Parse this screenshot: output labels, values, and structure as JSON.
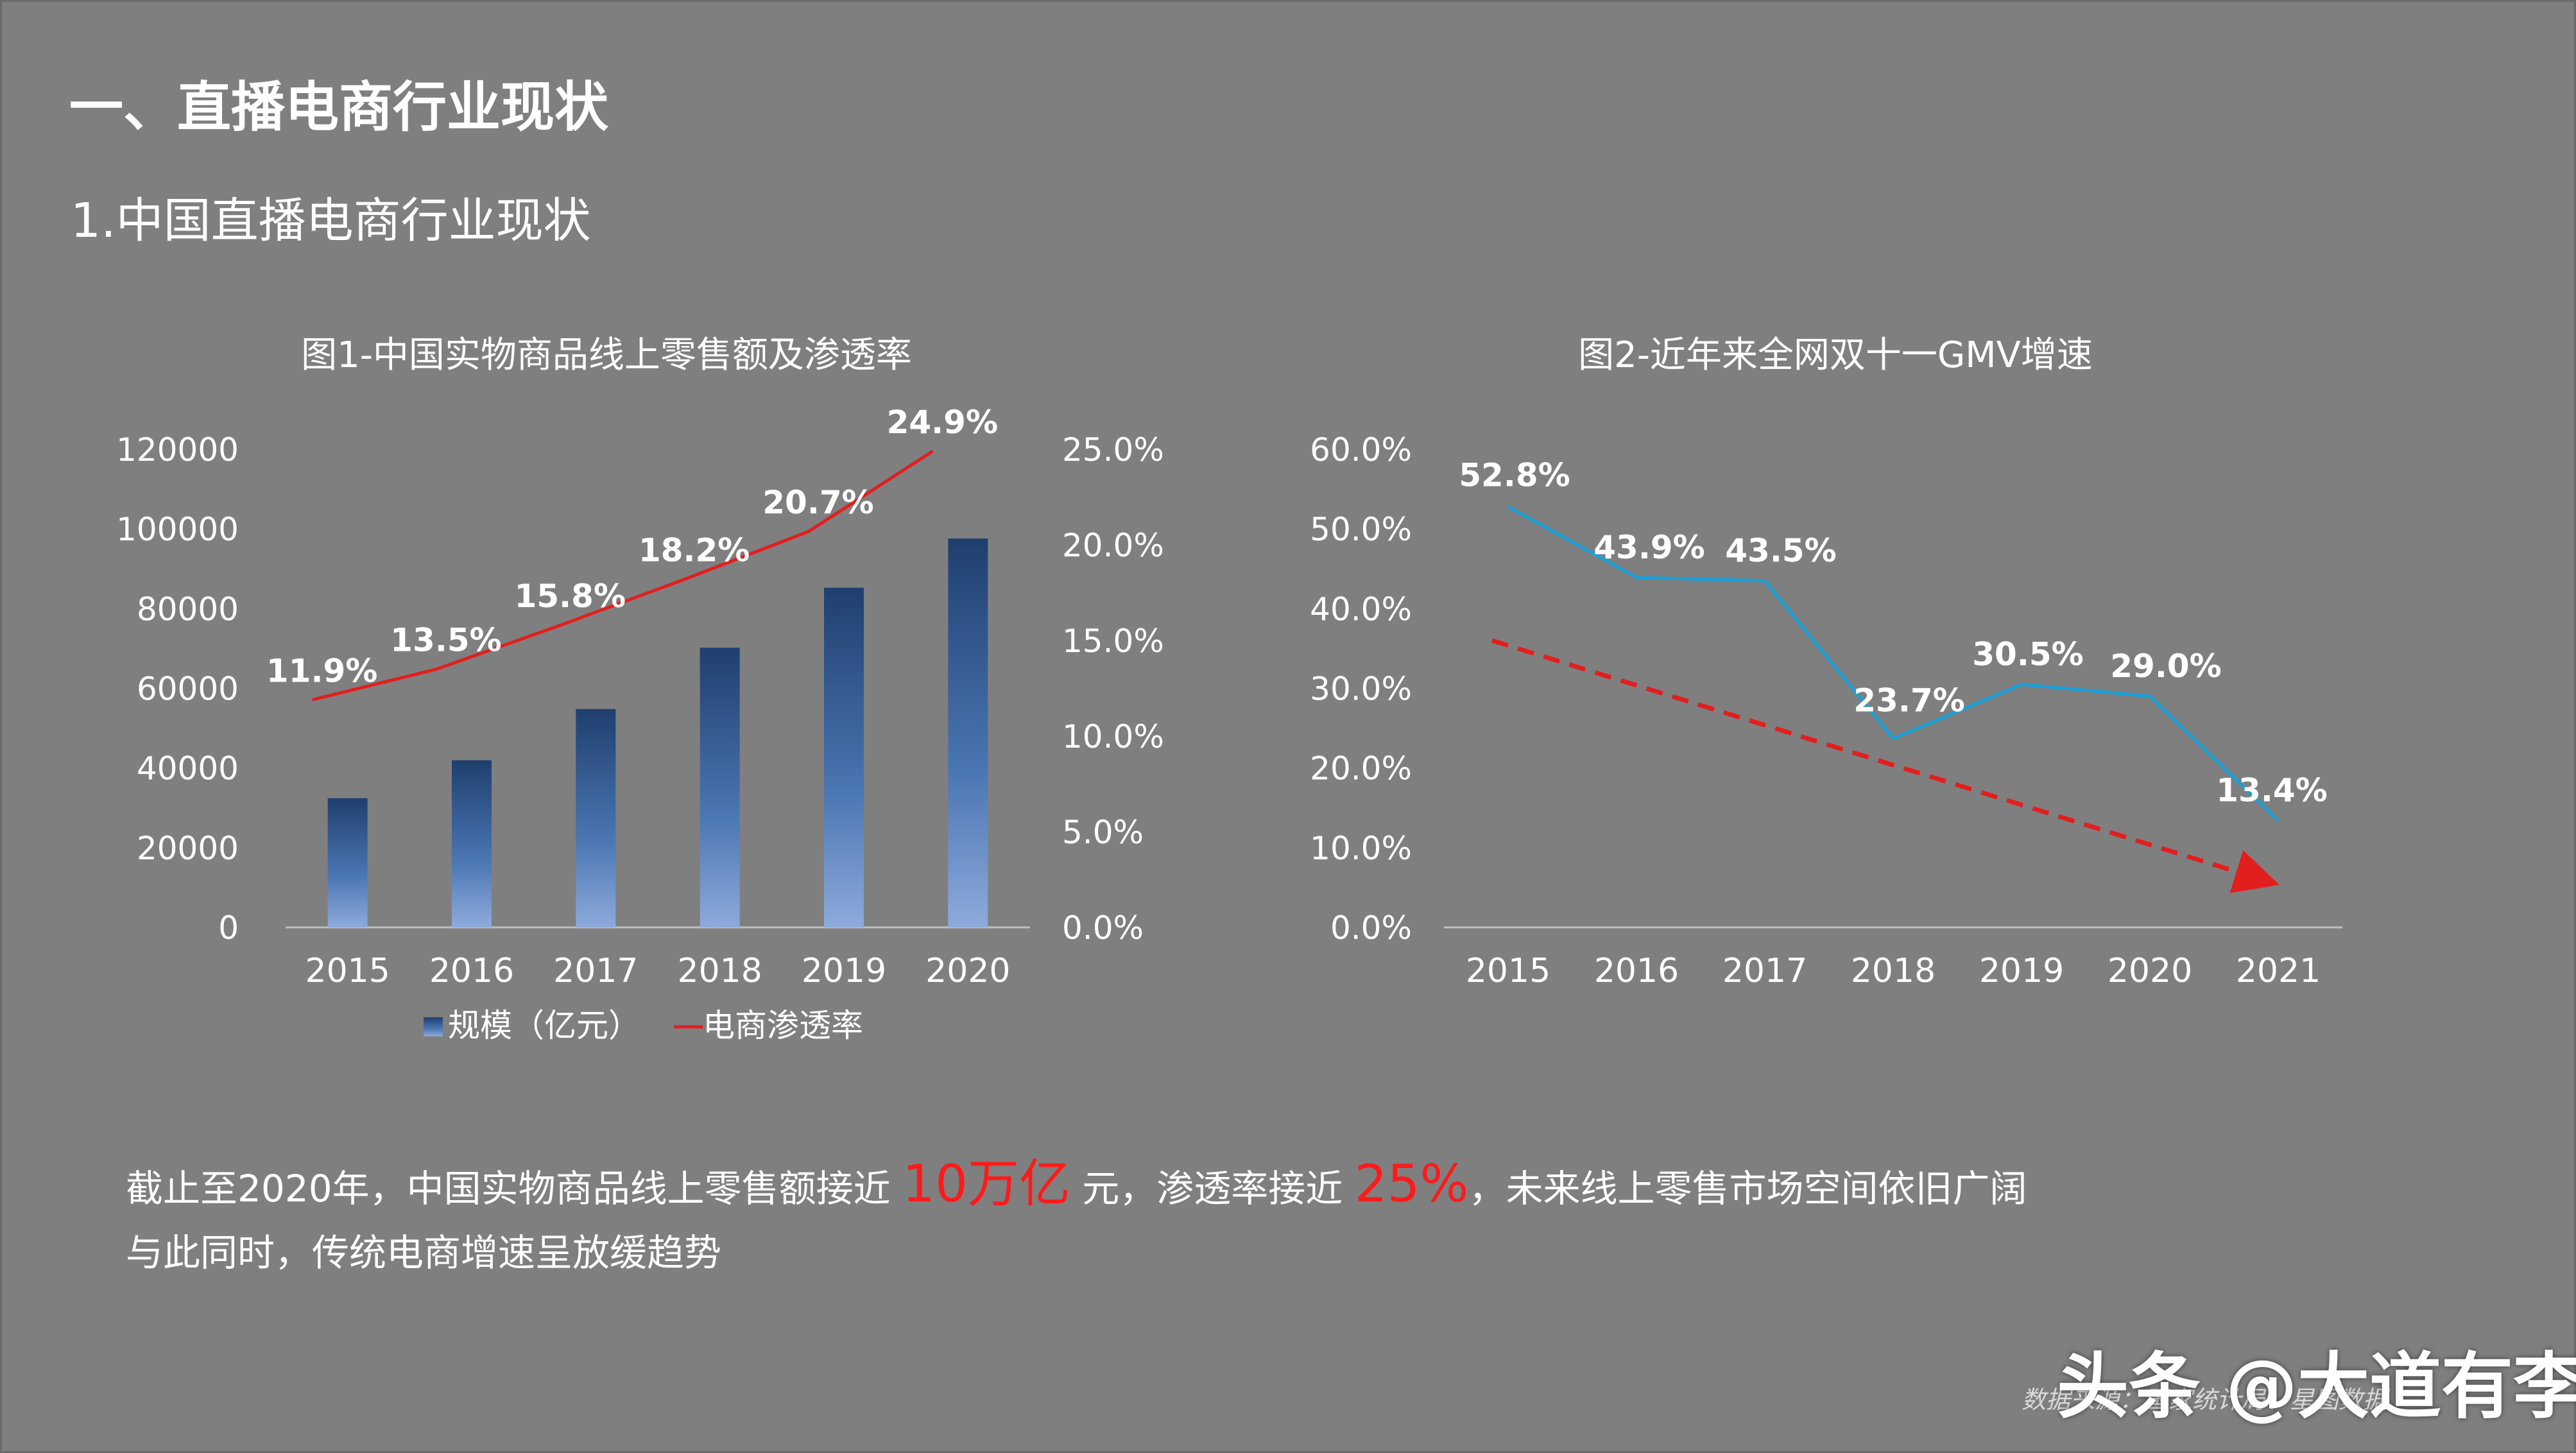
{
  "page": {
    "section_title": "一、直播电商行业现状",
    "subsection_title": "1.中国直播电商行业现状"
  },
  "chart_data": [
    {
      "type": "bar",
      "title": "图1-中国实物商品线上零售额及渗透率",
      "categories": [
        "2015",
        "2016",
        "2017",
        "2018",
        "2019",
        "2020"
      ],
      "series": [
        {
          "name": "规模（亿元）",
          "type": "bar",
          "axis": "left",
          "values": [
            32424,
            41944,
            54806,
            70198,
            85239,
            97590
          ]
        },
        {
          "name": "电商渗透率",
          "type": "line",
          "axis": "right",
          "values": [
            0.119,
            0.135,
            0.158,
            0.182,
            0.207,
            0.249
          ],
          "labels": [
            "11.9%",
            "13.5%",
            "15.8%",
            "18.2%",
            "20.7%",
            "24.9%"
          ]
        }
      ],
      "y_left": {
        "min": 0,
        "max": 120000,
        "ticks": [
          "0",
          "20000",
          "40000",
          "60000",
          "80000",
          "100000",
          "120000"
        ]
      },
      "y_right": {
        "min": 0,
        "max": 0.25,
        "ticks": [
          "0.0%",
          "5.0%",
          "10.0%",
          "15.0%",
          "20.0%",
          "25.0%"
        ]
      },
      "legend": {
        "position": "bottom",
        "items": [
          "规模（亿元）",
          "电商渗透率"
        ]
      },
      "colors": {
        "bar_top": "#1f3f6e",
        "bar_bottom": "#8eaadb",
        "line": "#e31e1e"
      }
    },
    {
      "type": "line",
      "title": "图2-近年来全网双十一GMV增速",
      "categories": [
        "2015",
        "2016",
        "2017",
        "2018",
        "2019",
        "2020",
        "2021"
      ],
      "series": [
        {
          "name": "GMV增速",
          "values": [
            0.528,
            0.439,
            0.435,
            0.237,
            0.305,
            0.29,
            0.134
          ],
          "labels": [
            "52.8%",
            "43.9%",
            "43.5%",
            "23.7%",
            "30.5%",
            "29.0%",
            "13.4%"
          ]
        }
      ],
      "trend": {
        "style": "dashed-arrow",
        "from": 0.36,
        "to": 0.06
      },
      "y": {
        "min": 0,
        "max": 0.6,
        "ticks": [
          "0.0%",
          "10.0%",
          "20.0%",
          "30.0%",
          "40.0%",
          "50.0%",
          "60.0%"
        ]
      },
      "colors": {
        "line": "#1aa0d8",
        "trend": "#e31e1e"
      }
    }
  ],
  "summary": {
    "line1_a": "截止至2020年，中国实物商品线上零售额接近",
    "line1_hl1": "10万亿",
    "line1_b": "元，渗透率接近",
    "line1_hl2": "25%",
    "line1_c": "，未来线上零售市场空间依旧广阔",
    "line2": "与此同时，传统电商增速呈放缓趋势"
  },
  "footer": {
    "source": "数据来源：国家统计局、星图数据",
    "watermark": "头条 @大道有李"
  }
}
